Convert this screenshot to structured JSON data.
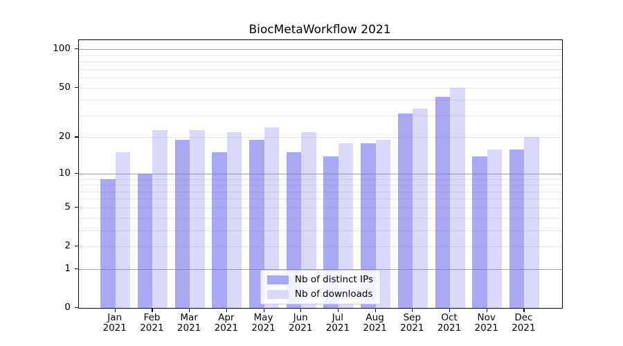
{
  "chart_data": {
    "type": "bar",
    "title": "BiocMetaWorkflow 2021",
    "scale": "log1p",
    "grid": true,
    "legend_position": "lower center",
    "categories": [
      "Jan 2021",
      "Feb 2021",
      "Mar 2021",
      "Apr 2021",
      "May 2021",
      "Jun 2021",
      "Jul 2021",
      "Aug 2021",
      "Sep 2021",
      "Oct 2021",
      "Nov 2021",
      "Dec 2021"
    ],
    "series": [
      {
        "name": "Nb of distinct IPs",
        "color": "#a8a8f5",
        "values": [
          9,
          10,
          19,
          15,
          19,
          15,
          14,
          18,
          31,
          42,
          14,
          16
        ]
      },
      {
        "name": "Nb of downloads",
        "color": "#d9d9fa",
        "values": [
          15,
          23,
          23,
          22,
          24,
          22,
          18,
          19,
          34,
          50,
          16,
          20
        ]
      }
    ],
    "xlabel": "",
    "ylabel": "",
    "y_ticks": [
      0,
      1,
      2,
      5,
      10,
      20,
      50,
      100
    ],
    "ylim": [
      0,
      118
    ],
    "colors": {
      "spine": "#000000",
      "major_grid": "#ababab",
      "minor_grid": "#eaeaea",
      "background": "#ffffff"
    }
  }
}
